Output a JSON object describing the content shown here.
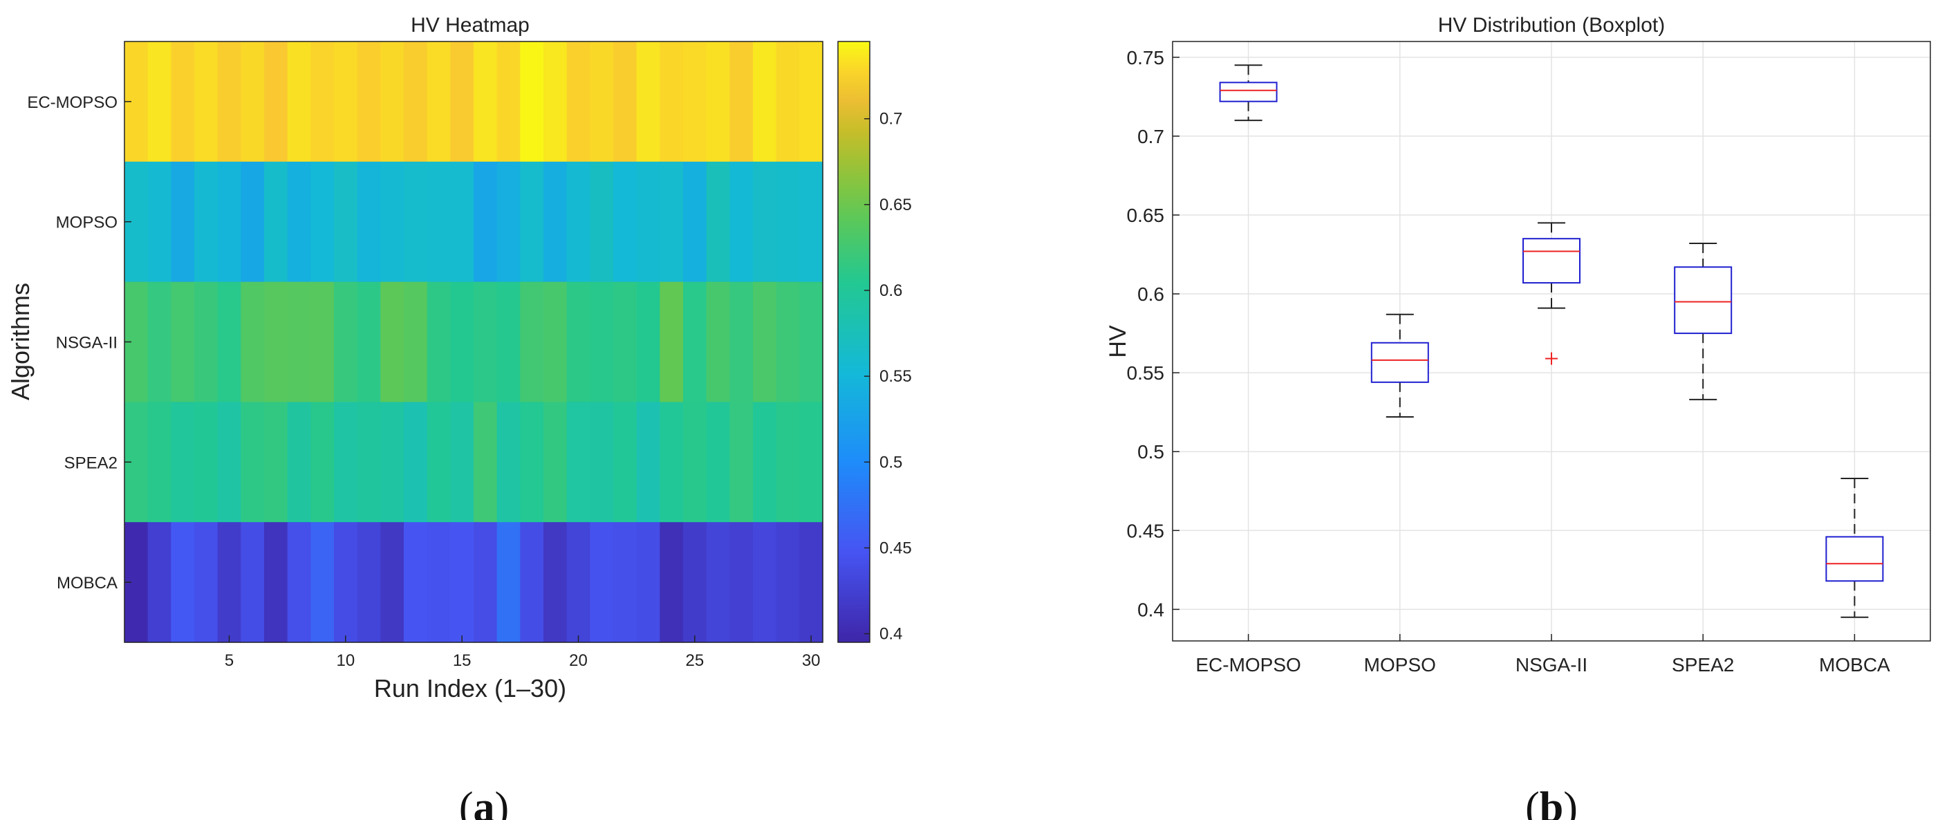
{
  "chart_data": [
    {
      "type": "heatmap",
      "title": "HV Heatmap",
      "xlabel": "Run Index (1–30)",
      "ylabel": "Algorithms",
      "panel_label": "a",
      "rows": [
        "EC-MOPSO",
        "MOPSO",
        "NSGA-II",
        "SPEA2",
        "MOBCA"
      ],
      "x": [
        1,
        2,
        3,
        4,
        5,
        6,
        7,
        8,
        9,
        10,
        11,
        12,
        13,
        14,
        15,
        16,
        17,
        18,
        19,
        20,
        21,
        22,
        23,
        24,
        25,
        26,
        27,
        28,
        29,
        30
      ],
      "x_ticks": [
        5,
        10,
        15,
        20,
        25,
        30
      ],
      "x_tick_labels": [
        "5",
        "10",
        "15",
        "20",
        "25",
        "30"
      ],
      "values": [
        [
          0.728,
          0.735,
          0.726,
          0.731,
          0.724,
          0.729,
          0.722,
          0.733,
          0.727,
          0.73,
          0.725,
          0.729,
          0.724,
          0.731,
          0.723,
          0.735,
          0.728,
          0.743,
          0.736,
          0.726,
          0.729,
          0.724,
          0.735,
          0.728,
          0.73,
          0.733,
          0.724,
          0.736,
          0.729,
          0.732
        ],
        [
          0.562,
          0.556,
          0.534,
          0.556,
          0.548,
          0.532,
          0.562,
          0.542,
          0.552,
          0.565,
          0.548,
          0.556,
          0.561,
          0.559,
          0.558,
          0.53,
          0.541,
          0.561,
          0.54,
          0.556,
          0.568,
          0.552,
          0.557,
          0.56,
          0.542,
          0.575,
          0.554,
          0.564,
          0.562,
          0.558
        ],
        [
          0.628,
          0.616,
          0.626,
          0.619,
          0.609,
          0.634,
          0.638,
          0.637,
          0.638,
          0.618,
          0.611,
          0.642,
          0.637,
          0.612,
          0.605,
          0.61,
          0.606,
          0.625,
          0.628,
          0.611,
          0.608,
          0.612,
          0.605,
          0.645,
          0.609,
          0.628,
          0.617,
          0.631,
          0.622,
          0.616
        ],
        [
          0.614,
          0.608,
          0.598,
          0.601,
          0.59,
          0.612,
          0.615,
          0.594,
          0.608,
          0.591,
          0.596,
          0.592,
          0.58,
          0.6,
          0.59,
          0.623,
          0.59,
          0.604,
          0.615,
          0.593,
          0.592,
          0.6,
          0.58,
          0.6,
          0.608,
          0.6,
          0.616,
          0.6,
          0.608,
          0.606
        ],
        [
          0.4,
          0.424,
          0.451,
          0.442,
          0.42,
          0.44,
          0.41,
          0.442,
          0.462,
          0.438,
          0.43,
          0.415,
          0.448,
          0.445,
          0.448,
          0.439,
          0.475,
          0.44,
          0.415,
          0.429,
          0.445,
          0.442,
          0.44,
          0.406,
          0.42,
          0.43,
          0.425,
          0.432,
          0.426,
          0.418
        ]
      ],
      "clim": [
        0.395,
        0.745
      ],
      "colormap": "parula",
      "colorbar_ticks": [
        0.4,
        0.45,
        0.5,
        0.55,
        0.6,
        0.65,
        0.7
      ],
      "colorbar_tick_labels": [
        "0.4",
        "0.45",
        "0.5",
        "0.55",
        "0.6",
        "0.65",
        "0.7"
      ]
    },
    {
      "type": "boxplot",
      "title": "HV Distribution (Boxplot)",
      "xlabel": "",
      "ylabel": "HV",
      "panel_label": "b",
      "categories": [
        "EC-MOPSO",
        "MOPSO",
        "NSGA-II",
        "SPEA2",
        "MOBCA"
      ],
      "boxes": [
        {
          "whisker_low": 0.71,
          "q1": 0.722,
          "median": 0.729,
          "q3": 0.734,
          "whisker_high": 0.745,
          "outliers": []
        },
        {
          "whisker_low": 0.522,
          "q1": 0.544,
          "median": 0.558,
          "q3": 0.569,
          "whisker_high": 0.587,
          "outliers": []
        },
        {
          "whisker_low": 0.591,
          "q1": 0.607,
          "median": 0.627,
          "q3": 0.635,
          "whisker_high": 0.645,
          "outliers": [
            0.559
          ]
        },
        {
          "whisker_low": 0.533,
          "q1": 0.575,
          "median": 0.595,
          "q3": 0.617,
          "whisker_high": 0.632,
          "outliers": []
        },
        {
          "whisker_low": 0.395,
          "q1": 0.418,
          "median": 0.429,
          "q3": 0.446,
          "whisker_high": 0.483,
          "outliers": []
        }
      ],
      "ylim": [
        0.38,
        0.76
      ],
      "y_ticks": [
        0.4,
        0.45,
        0.5,
        0.55,
        0.6,
        0.65,
        0.7,
        0.75
      ],
      "y_tick_labels": [
        "0.4",
        "0.45",
        "0.5",
        "0.55",
        "0.6",
        "0.65",
        "0.7",
        "0.75"
      ],
      "grid": true,
      "colors": {
        "box": "#1f1fd0",
        "median": "#ee2222",
        "whisker": "#222222",
        "outlier": "#ee2222"
      }
    }
  ]
}
